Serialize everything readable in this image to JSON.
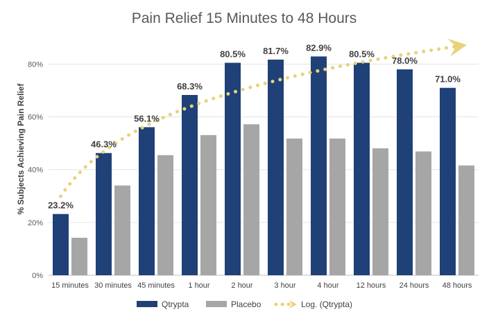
{
  "chart_data": {
    "type": "bar",
    "title": "Pain Relief 15 Minutes to 48 Hours",
    "xlabel": "",
    "ylabel": "% Subjects Achieving Pain Relief",
    "ylim": [
      0,
      88
    ],
    "yticks": [
      0,
      20,
      40,
      60,
      80
    ],
    "ytick_labels": [
      "0%",
      "20%",
      "40%",
      "60%",
      "80%"
    ],
    "categories": [
      "15 minutes",
      "30 minutes",
      "45 minutes",
      "1 hour",
      "2 hour",
      "3 hour",
      "4 hour",
      "12 hours",
      "24 hours",
      "48 hours"
    ],
    "series": [
      {
        "name": "Qtrypta",
        "color": "#1F4178",
        "values": [
          23.2,
          46.3,
          56.1,
          68.3,
          80.5,
          81.7,
          82.9,
          80.5,
          78.0,
          71.0
        ],
        "data_labels": [
          "23.2%",
          "46.3%",
          "56.1%",
          "68.3%",
          "80.5%",
          "81.7%",
          "82.9%",
          "80.5%",
          "78.0%",
          "71.0%"
        ]
      },
      {
        "name": "Placebo",
        "color": "#A6A6A6",
        "values": [
          14.2,
          34.0,
          45.5,
          53.1,
          57.2,
          51.8,
          51.8,
          48.1,
          46.9,
          41.6
        ]
      }
    ],
    "trendline": {
      "name": "Log. (Qtrypta)",
      "type": "logarithmic",
      "color": "#E8D27A"
    },
    "legend": {
      "position": "bottom",
      "entries": [
        "Qtrypta",
        "Placebo",
        "Log. (Qtrypta)"
      ]
    },
    "grid": true
  }
}
